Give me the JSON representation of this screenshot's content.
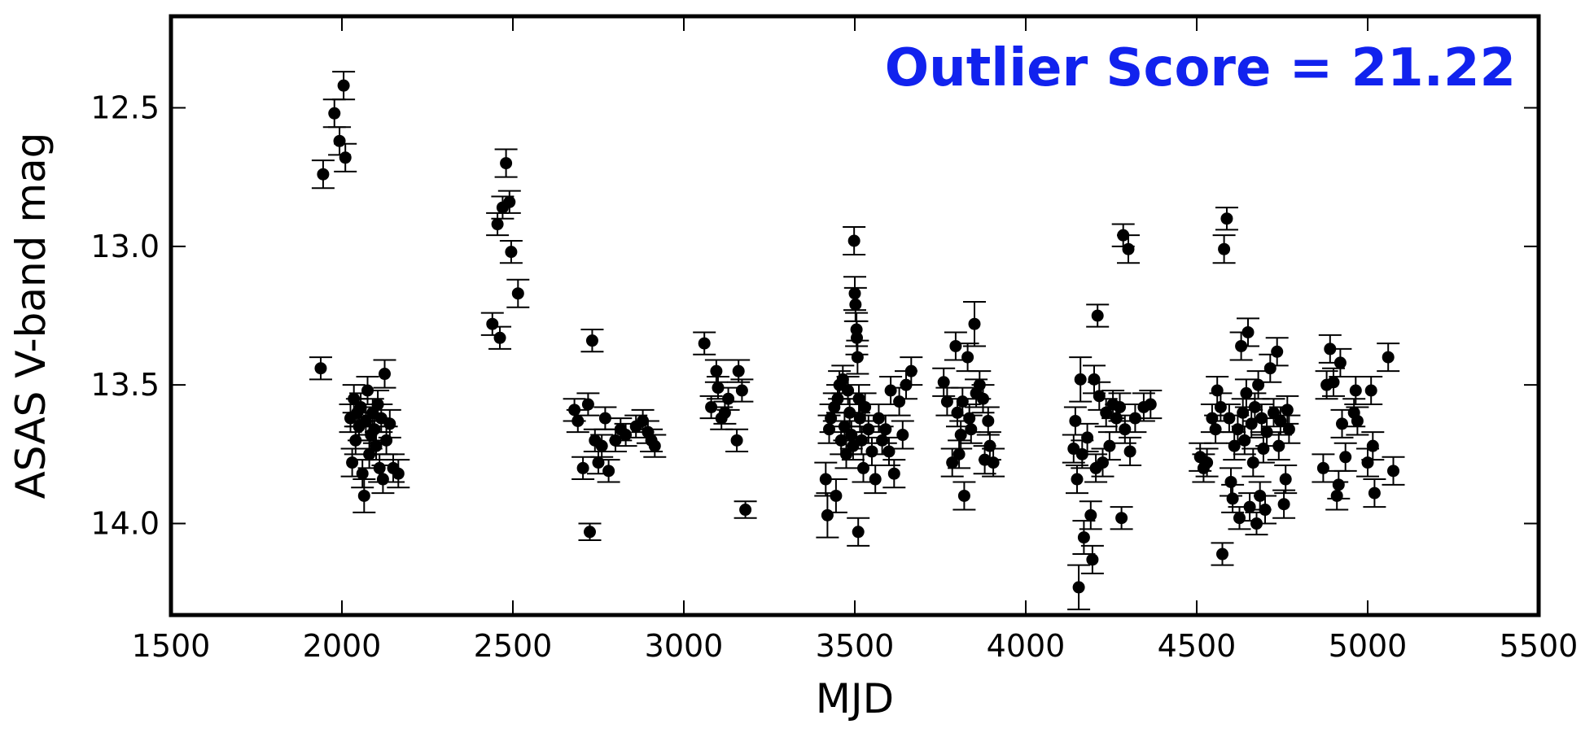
{
  "chart_data": {
    "type": "scatter",
    "title": "",
    "xlabel": "MJD",
    "ylabel": "ASAS V-band mag",
    "annotation": "Outlier Score = 21.22",
    "annotation_color": "#1122ee",
    "marker_color": "#000000",
    "xlim": [
      1500,
      5500
    ],
    "ylim": [
      14.33,
      12.17
    ],
    "y_inverted": true,
    "xticks": [
      "1500",
      "2000",
      "2500",
      "3000",
      "3500",
      "4000",
      "4500",
      "5000",
      "5500"
    ],
    "yticks": [
      "12.5",
      "13.0",
      "13.5",
      "14.0"
    ],
    "grid": false,
    "series": [
      {
        "points": [
          [
            1945,
            12.74,
            0.05
          ],
          [
            1978,
            12.52,
            0.05
          ],
          [
            1993,
            12.62,
            0.05
          ],
          [
            2005,
            12.42,
            0.05
          ],
          [
            2010,
            12.68,
            0.05
          ],
          [
            1938,
            13.44,
            0.04
          ],
          [
            2025,
            13.62,
            0.05
          ],
          [
            2030,
            13.78,
            0.05
          ],
          [
            2035,
            13.55,
            0.05
          ],
          [
            2040,
            13.7,
            0.05
          ],
          [
            2045,
            13.6,
            0.05
          ],
          [
            2050,
            13.65,
            0.05
          ],
          [
            2055,
            13.58,
            0.05
          ],
          [
            2060,
            13.82,
            0.05
          ],
          [
            2065,
            13.9,
            0.06
          ],
          [
            2070,
            13.63,
            0.05
          ],
          [
            2075,
            13.52,
            0.05
          ],
          [
            2080,
            13.75,
            0.05
          ],
          [
            2085,
            13.68,
            0.05
          ],
          [
            2090,
            13.6,
            0.05
          ],
          [
            2095,
            13.66,
            0.05
          ],
          [
            2100,
            13.72,
            0.05
          ],
          [
            2105,
            13.57,
            0.05
          ],
          [
            2110,
            13.8,
            0.05
          ],
          [
            2115,
            13.62,
            0.05
          ],
          [
            2120,
            13.84,
            0.05
          ],
          [
            2125,
            13.46,
            0.05
          ],
          [
            2130,
            13.7,
            0.05
          ],
          [
            2140,
            13.64,
            0.05
          ],
          [
            2150,
            13.8,
            0.05
          ],
          [
            2165,
            13.82,
            0.05
          ],
          [
            2440,
            13.28,
            0.04
          ],
          [
            2455,
            12.92,
            0.04
          ],
          [
            2462,
            13.33,
            0.04
          ],
          [
            2470,
            12.86,
            0.04
          ],
          [
            2480,
            12.7,
            0.05
          ],
          [
            2490,
            12.84,
            0.04
          ],
          [
            2495,
            13.02,
            0.04
          ],
          [
            2515,
            13.17,
            0.05
          ],
          [
            2680,
            13.59,
            0.04
          ],
          [
            2690,
            13.63,
            0.04
          ],
          [
            2705,
            13.8,
            0.04
          ],
          [
            2720,
            13.57,
            0.04
          ],
          [
            2725,
            14.03,
            0.03
          ],
          [
            2732,
            13.34,
            0.04
          ],
          [
            2740,
            13.7,
            0.04
          ],
          [
            2750,
            13.78,
            0.04
          ],
          [
            2760,
            13.72,
            0.04
          ],
          [
            2770,
            13.62,
            0.04
          ],
          [
            2780,
            13.81,
            0.04
          ],
          [
            2800,
            13.7,
            0.04
          ],
          [
            2815,
            13.66,
            0.04
          ],
          [
            2830,
            13.68,
            0.04
          ],
          [
            2860,
            13.65,
            0.04
          ],
          [
            2880,
            13.63,
            0.04
          ],
          [
            2895,
            13.67,
            0.04
          ],
          [
            2905,
            13.7,
            0.04
          ],
          [
            2915,
            13.72,
            0.04
          ],
          [
            3060,
            13.35,
            0.04
          ],
          [
            3080,
            13.58,
            0.04
          ],
          [
            3095,
            13.45,
            0.04
          ],
          [
            3100,
            13.51,
            0.04
          ],
          [
            3110,
            13.62,
            0.04
          ],
          [
            3120,
            13.6,
            0.04
          ],
          [
            3130,
            13.55,
            0.04
          ],
          [
            3155,
            13.7,
            0.04
          ],
          [
            3160,
            13.45,
            0.04
          ],
          [
            3170,
            13.52,
            0.04
          ],
          [
            3180,
            13.95,
            0.03
          ],
          [
            3415,
            13.84,
            0.06
          ],
          [
            3420,
            13.97,
            0.08
          ],
          [
            3425,
            13.66,
            0.05
          ],
          [
            3430,
            13.62,
            0.05
          ],
          [
            3440,
            13.58,
            0.05
          ],
          [
            3445,
            13.9,
            0.06
          ],
          [
            3450,
            13.55,
            0.05
          ],
          [
            3455,
            13.5,
            0.05
          ],
          [
            3460,
            13.7,
            0.05
          ],
          [
            3465,
            13.48,
            0.05
          ],
          [
            3470,
            13.65,
            0.05
          ],
          [
            3475,
            13.75,
            0.05
          ],
          [
            3480,
            13.52,
            0.05
          ],
          [
            3485,
            13.6,
            0.05
          ],
          [
            3490,
            13.68,
            0.05
          ],
          [
            3495,
            13.72,
            0.05
          ],
          [
            3498,
            12.98,
            0.05
          ],
          [
            3500,
            13.17,
            0.06
          ],
          [
            3502,
            13.21,
            0.06
          ],
          [
            3505,
            13.3,
            0.06
          ],
          [
            3506,
            13.33,
            0.06
          ],
          [
            3508,
            13.4,
            0.06
          ],
          [
            3510,
            14.03,
            0.05
          ],
          [
            3512,
            13.55,
            0.05
          ],
          [
            3515,
            13.62,
            0.05
          ],
          [
            3520,
            13.7,
            0.05
          ],
          [
            3525,
            13.8,
            0.05
          ],
          [
            3530,
            13.58,
            0.05
          ],
          [
            3540,
            13.66,
            0.05
          ],
          [
            3550,
            13.74,
            0.05
          ],
          [
            3560,
            13.84,
            0.05
          ],
          [
            3570,
            13.62,
            0.05
          ],
          [
            3580,
            13.7,
            0.05
          ],
          [
            3590,
            13.66,
            0.05
          ],
          [
            3600,
            13.74,
            0.05
          ],
          [
            3605,
            13.52,
            0.05
          ],
          [
            3615,
            13.82,
            0.05
          ],
          [
            3630,
            13.56,
            0.05
          ],
          [
            3640,
            13.68,
            0.05
          ],
          [
            3650,
            13.5,
            0.05
          ],
          [
            3665,
            13.45,
            0.05
          ],
          [
            3760,
            13.49,
            0.05
          ],
          [
            3770,
            13.56,
            0.05
          ],
          [
            3785,
            13.78,
            0.05
          ],
          [
            3795,
            13.36,
            0.05
          ],
          [
            3800,
            13.6,
            0.05
          ],
          [
            3805,
            13.75,
            0.05
          ],
          [
            3810,
            13.68,
            0.05
          ],
          [
            3815,
            13.56,
            0.05
          ],
          [
            3820,
            13.9,
            0.05
          ],
          [
            3830,
            13.4,
            0.05
          ],
          [
            3835,
            13.62,
            0.05
          ],
          [
            3840,
            13.66,
            0.05
          ],
          [
            3850,
            13.28,
            0.08
          ],
          [
            3855,
            13.53,
            0.05
          ],
          [
            3865,
            13.5,
            0.05
          ],
          [
            3875,
            13.55,
            0.05
          ],
          [
            3880,
            13.77,
            0.05
          ],
          [
            3890,
            13.63,
            0.05
          ],
          [
            3895,
            13.72,
            0.05
          ],
          [
            3905,
            13.78,
            0.05
          ],
          [
            4140,
            13.73,
            0.05
          ],
          [
            4145,
            13.63,
            0.05
          ],
          [
            4150,
            13.84,
            0.05
          ],
          [
            4155,
            14.23,
            0.08
          ],
          [
            4160,
            13.48,
            0.08
          ],
          [
            4165,
            13.75,
            0.05
          ],
          [
            4170,
            14.05,
            0.06
          ],
          [
            4180,
            13.69,
            0.05
          ],
          [
            4190,
            13.97,
            0.05
          ],
          [
            4195,
            14.13,
            0.05
          ],
          [
            4200,
            13.48,
            0.05
          ],
          [
            4205,
            13.8,
            0.05
          ],
          [
            4210,
            13.25,
            0.04
          ],
          [
            4215,
            13.54,
            0.05
          ],
          [
            4225,
            13.78,
            0.05
          ],
          [
            4235,
            13.6,
            0.05
          ],
          [
            4245,
            13.72,
            0.05
          ],
          [
            4255,
            13.57,
            0.05
          ],
          [
            4265,
            13.62,
            0.05
          ],
          [
            4275,
            13.58,
            0.05
          ],
          [
            4280,
            13.98,
            0.04
          ],
          [
            4285,
            12.96,
            0.04
          ],
          [
            4290,
            13.66,
            0.05
          ],
          [
            4300,
            13.01,
            0.05
          ],
          [
            4305,
            13.74,
            0.05
          ],
          [
            4320,
            13.62,
            0.05
          ],
          [
            4345,
            13.58,
            0.05
          ],
          [
            4365,
            13.57,
            0.05
          ],
          [
            4510,
            13.76,
            0.05
          ],
          [
            4520,
            13.8,
            0.05
          ],
          [
            4530,
            13.78,
            0.05
          ],
          [
            4545,
            13.62,
            0.05
          ],
          [
            4555,
            13.66,
            0.05
          ],
          [
            4560,
            13.52,
            0.05
          ],
          [
            4570,
            13.58,
            0.05
          ],
          [
            4575,
            14.11,
            0.04
          ],
          [
            4580,
            13.01,
            0.05
          ],
          [
            4588,
            12.9,
            0.04
          ],
          [
            4595,
            13.62,
            0.05
          ],
          [
            4600,
            13.85,
            0.05
          ],
          [
            4605,
            13.91,
            0.05
          ],
          [
            4610,
            13.72,
            0.05
          ],
          [
            4620,
            13.66,
            0.05
          ],
          [
            4625,
            13.98,
            0.04
          ],
          [
            4630,
            13.36,
            0.05
          ],
          [
            4635,
            13.6,
            0.05
          ],
          [
            4640,
            13.7,
            0.05
          ],
          [
            4645,
            13.53,
            0.05
          ],
          [
            4650,
            13.31,
            0.05
          ],
          [
            4655,
            13.94,
            0.05
          ],
          [
            4660,
            13.64,
            0.05
          ],
          [
            4665,
            13.78,
            0.05
          ],
          [
            4670,
            13.58,
            0.05
          ],
          [
            4675,
            14.0,
            0.04
          ],
          [
            4680,
            13.5,
            0.05
          ],
          [
            4685,
            13.9,
            0.05
          ],
          [
            4690,
            13.62,
            0.05
          ],
          [
            4695,
            13.73,
            0.05
          ],
          [
            4700,
            13.95,
            0.05
          ],
          [
            4705,
            13.67,
            0.05
          ],
          [
            4715,
            13.44,
            0.05
          ],
          [
            4725,
            13.6,
            0.05
          ],
          [
            4735,
            13.38,
            0.05
          ],
          [
            4740,
            13.72,
            0.05
          ],
          [
            4745,
            13.63,
            0.05
          ],
          [
            4755,
            13.93,
            0.05
          ],
          [
            4760,
            13.84,
            0.05
          ],
          [
            4765,
            13.59,
            0.05
          ],
          [
            4770,
            13.66,
            0.05
          ],
          [
            4870,
            13.8,
            0.05
          ],
          [
            4880,
            13.5,
            0.05
          ],
          [
            4890,
            13.37,
            0.05
          ],
          [
            4900,
            13.49,
            0.05
          ],
          [
            4910,
            13.9,
            0.05
          ],
          [
            4915,
            13.86,
            0.05
          ],
          [
            4920,
            13.42,
            0.05
          ],
          [
            4925,
            13.64,
            0.05
          ],
          [
            4935,
            13.76,
            0.05
          ],
          [
            4960,
            13.6,
            0.05
          ],
          [
            4965,
            13.52,
            0.05
          ],
          [
            4970,
            13.63,
            0.05
          ],
          [
            5000,
            13.78,
            0.05
          ],
          [
            5010,
            13.52,
            0.05
          ],
          [
            5015,
            13.72,
            0.05
          ],
          [
            5020,
            13.89,
            0.05
          ],
          [
            5060,
            13.4,
            0.05
          ],
          [
            5075,
            13.81,
            0.05
          ]
        ]
      }
    ]
  }
}
